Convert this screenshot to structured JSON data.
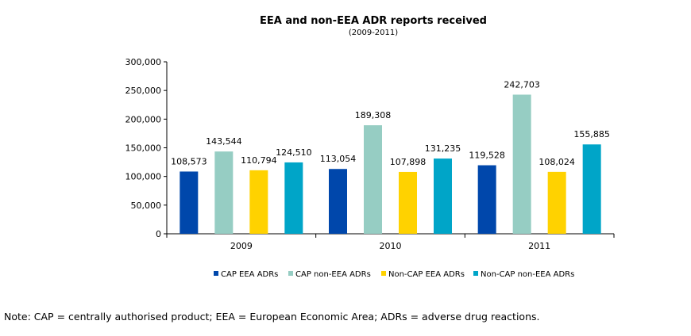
{
  "chart_data": {
    "type": "bar",
    "title": "EEA and non-EEA ADR reports received",
    "subtitle": "(2009-2011)",
    "categories": [
      "2009",
      "2010",
      "2011"
    ],
    "series": [
      {
        "name": "CAP EEA ADRs",
        "color": "#0047AB",
        "values": [
          108573,
          113054,
          119528
        ],
        "labels": [
          "108,573",
          "113,054",
          "119,528"
        ]
      },
      {
        "name": "CAP non-EEA ADRs",
        "color": "#96CDC3",
        "values": [
          143544,
          189308,
          242703
        ],
        "labels": [
          "143,544",
          "189,308",
          "242,703"
        ]
      },
      {
        "name": "Non-CAP EEA ADRs",
        "color": "#FFD200",
        "values": [
          110794,
          107898,
          108024
        ],
        "labels": [
          "110,794",
          "107,898",
          "108,024"
        ]
      },
      {
        "name": "Non-CAP non-EEA ADRs",
        "color": "#00A5C8",
        "values": [
          124510,
          131235,
          155885
        ],
        "labels": [
          "124,510",
          "131,235",
          "155,885"
        ]
      }
    ],
    "ylim": [
      0,
      300000
    ],
    "yticks": [
      0,
      50000,
      100000,
      150000,
      200000,
      250000,
      300000
    ],
    "ytick_labels": [
      "0",
      "50,000",
      "100,000",
      "150,000",
      "200,000",
      "250,000",
      "300,000"
    ],
    "xlabel": "",
    "ylabel": "",
    "grid": false,
    "legend_position": "bottom"
  },
  "note": "Note: CAP = centrally authorised product; EEA = European Economic Area; ADRs = adverse drug reactions."
}
